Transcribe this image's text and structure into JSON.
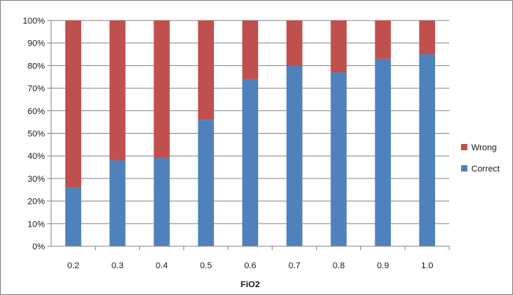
{
  "chart_data": {
    "type": "bar",
    "stacked": true,
    "percent": true,
    "xlabel": "FiO2",
    "ylabel": "",
    "ylim": [
      0,
      100
    ],
    "y_ticks": [
      "0%",
      "10%",
      "20%",
      "30%",
      "40%",
      "50%",
      "60%",
      "70%",
      "80%",
      "90%",
      "100%"
    ],
    "categories": [
      "0.2",
      "0.3",
      "0.4",
      "0.5",
      "0.6",
      "0.7",
      "0.8",
      "0.9",
      "1.0"
    ],
    "series": [
      {
        "name": "Correct",
        "color": "#4f81bd",
        "values": [
          26,
          38,
          39,
          56,
          74,
          80,
          77,
          83,
          85
        ]
      },
      {
        "name": "Wrong",
        "color": "#c0504d",
        "values": [
          74,
          62,
          61,
          44,
          26,
          20,
          23,
          17,
          15
        ]
      }
    ],
    "grid": true,
    "legend_position": "right",
    "legend_order": [
      "Wrong",
      "Correct"
    ]
  }
}
